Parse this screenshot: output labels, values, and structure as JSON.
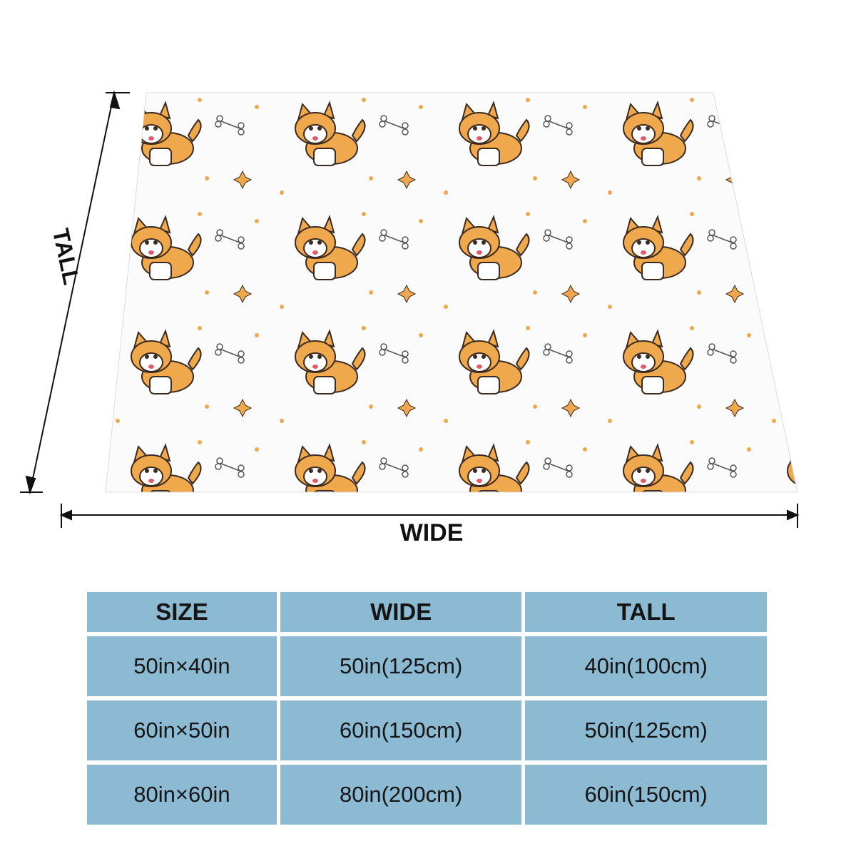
{
  "diagram": {
    "tall_label": "TALL",
    "wide_label": "WIDE"
  },
  "table": {
    "header": [
      "SIZE",
      "WIDE",
      "TALL"
    ],
    "rows": [
      [
        "50in×40in",
        "50in(125cm)",
        "40in(100cm)"
      ],
      [
        "60in×50in",
        "60in(150cm)",
        "50in(125cm)"
      ],
      [
        "80in×60in",
        "80in(200cm)",
        "60in(150cm)"
      ]
    ]
  }
}
